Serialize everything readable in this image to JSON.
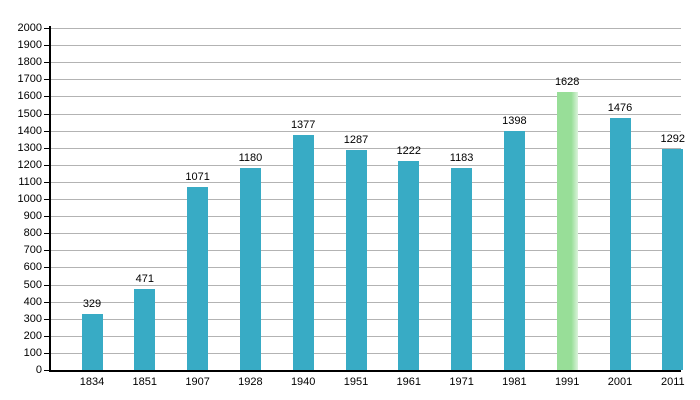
{
  "chart_data": {
    "type": "bar",
    "title": "",
    "xlabel": "",
    "ylabel": "",
    "categories": [
      "1834",
      "1851",
      "1907",
      "1928",
      "1940",
      "1951",
      "1961",
      "1971",
      "1981",
      "1991",
      "2001",
      "2011"
    ],
    "values": [
      329,
      471,
      1071,
      1180,
      1377,
      1287,
      1222,
      1183,
      1398,
      1628,
      1476,
      1292
    ],
    "data_labels": [
      "329",
      "471",
      "1071",
      "1180",
      "1377",
      "1287",
      "1222",
      "1183",
      "1398",
      "1628",
      "1476",
      "1292"
    ],
    "ylim": [
      0,
      2000
    ],
    "ytick_step": 100,
    "ytick_labels": [
      "0",
      "100",
      "200",
      "300",
      "400",
      "500",
      "600",
      "700",
      "800",
      "900",
      "1000",
      "1100",
      "1200",
      "1300",
      "1400",
      "1500",
      "1600",
      "1700",
      "1800",
      "1900",
      "2000"
    ],
    "grid": true,
    "legend": "none",
    "highlight_index": 9,
    "colors": {
      "bar": "#38abc5",
      "highlight_bar": "#98de98",
      "highlight_bar_fade": "#dcf3dc",
      "gridline": "#b3b3b3",
      "axis": "#000000",
      "text": "#000000",
      "background": "#ffffff"
    }
  }
}
